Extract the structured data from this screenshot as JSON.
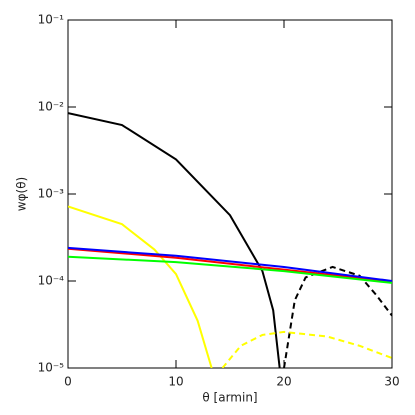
{
  "chart_data": {
    "type": "line",
    "xlabel": "θ [armin]",
    "ylabel": "wφ(θ)",
    "xlim": [
      0,
      30
    ],
    "xticks": [
      0,
      10,
      20,
      30
    ],
    "ylim": [
      1e-05,
      0.1
    ],
    "log_y": true,
    "yticks": [
      {
        "value": 1e-05,
        "label": "10⁻⁵"
      },
      {
        "value": 0.0001,
        "label": "10⁻⁴"
      },
      {
        "value": 0.001,
        "label": "10⁻³"
      },
      {
        "value": 0.01,
        "label": "10⁻²"
      },
      {
        "value": 0.1,
        "label": "10⁻¹"
      }
    ],
    "series": [
      {
        "color": "#000000",
        "dash": false,
        "x": [
          0,
          5,
          10,
          15,
          18,
          19,
          19.6
        ],
        "values": [
          0.0085,
          0.0062,
          0.0025,
          0.00057,
          0.00013,
          4.6e-05,
          1e-05
        ]
      },
      {
        "color": "#000000",
        "dash": true,
        "x": [
          20,
          21,
          22,
          24.5,
          27,
          28.5,
          30
        ],
        "values": [
          1e-05,
          6e-05,
          0.00011,
          0.000145,
          0.000115,
          7e-05,
          4e-05
        ]
      },
      {
        "color": "#ffff00",
        "dash": false,
        "x": [
          0,
          5,
          8,
          10,
          12,
          13.3
        ],
        "values": [
          0.00072,
          0.00045,
          0.00023,
          0.00012,
          3.5e-05,
          1e-05
        ]
      },
      {
        "color": "#ffff00",
        "dash": true,
        "x": [
          14.3,
          16,
          18,
          20,
          24,
          27,
          30
        ],
        "values": [
          1e-05,
          1.8e-05,
          2.4e-05,
          2.6e-05,
          2.3e-05,
          1.8e-05,
          1.3e-05
        ]
      },
      {
        "color": "#ff0000",
        "dash": false,
        "x": [
          0,
          10,
          20,
          30
        ],
        "values": [
          0.000235,
          0.000185,
          0.000135,
          9.8e-05
        ]
      },
      {
        "color": "#0000ff",
        "dash": false,
        "x": [
          0,
          10,
          20,
          30
        ],
        "values": [
          0.00024,
          0.000195,
          0.000145,
          0.0001
        ]
      },
      {
        "color": "#00ff00",
        "dash": false,
        "x": [
          0,
          10,
          20,
          30
        ],
        "values": [
          0.00019,
          0.000165,
          0.00013,
          9.5e-05
        ]
      }
    ]
  }
}
